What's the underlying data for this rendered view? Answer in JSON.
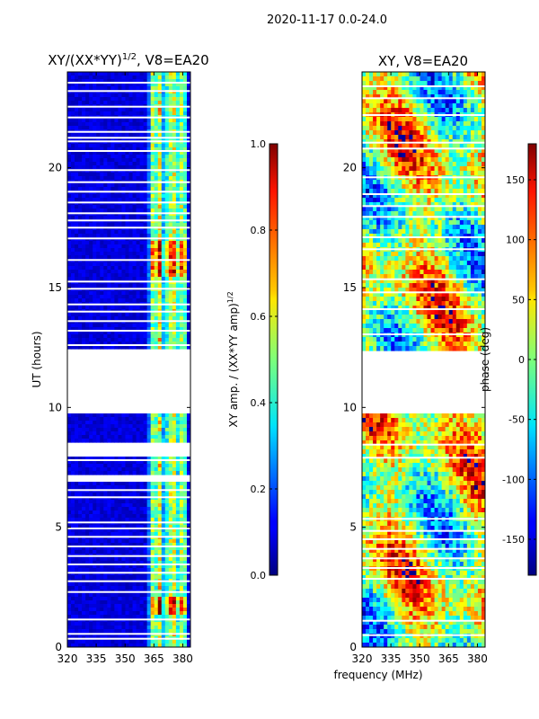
{
  "figure": {
    "suptitle": "2020-11-17 0.0-24.0",
    "xlabel": "frequency (MHz)"
  },
  "chart_data": [
    {
      "type": "heatmap",
      "title_main": "XY/(XX*YY)",
      "title_sup": "1/2",
      "title_suffix": ", V8=EA20",
      "ylabel": "UT (hours)",
      "x_ticks": [
        "320",
        "335",
        "350",
        "365",
        "380"
      ],
      "x_tick_values": [
        320,
        335,
        350,
        365,
        380
      ],
      "xlim": [
        320,
        384
      ],
      "y_ticks": [
        "0",
        "5",
        "10",
        "15",
        "20"
      ],
      "y_tick_values": [
        0,
        5,
        10,
        15,
        20
      ],
      "ylim": [
        0,
        24
      ],
      "colorbar": {
        "label_main": "XY amp. / (XX*YY amp)",
        "label_sup": "1/2",
        "ticks": [
          "0.0",
          "0.2",
          "0.4",
          "0.6",
          "0.8",
          "1.0"
        ],
        "tick_values": [
          0.0,
          0.2,
          0.4,
          0.6,
          0.8,
          1.0
        ],
        "range": [
          0,
          1
        ],
        "colormap": "jet"
      },
      "data_gaps_hours": [
        [
          8.0,
          8.6
        ],
        [
          9.7,
          12.4
        ],
        [
          6.95,
          7.15
        ]
      ]
    },
    {
      "type": "heatmap",
      "title_main": "XY, V8=EA20",
      "x_ticks": [
        "320",
        "335",
        "350",
        "365",
        "380"
      ],
      "x_tick_values": [
        320,
        335,
        350,
        365,
        380
      ],
      "xlim": [
        320,
        384
      ],
      "y_ticks": [
        "0",
        "5",
        "10",
        "15",
        "20"
      ],
      "y_tick_values": [
        0,
        5,
        10,
        15,
        20
      ],
      "ylim": [
        0,
        24
      ],
      "colorbar": {
        "label": "phase (deg)",
        "ticks": [
          "-150",
          "-100",
          "-50",
          "0",
          "50",
          "100",
          "150"
        ],
        "tick_values": [
          -150,
          -100,
          -50,
          0,
          50,
          100,
          150
        ],
        "range": [
          -180,
          180
        ],
        "colormap": "jet"
      },
      "data_gaps_hours": [
        [
          9.7,
          12.4
        ]
      ]
    }
  ]
}
